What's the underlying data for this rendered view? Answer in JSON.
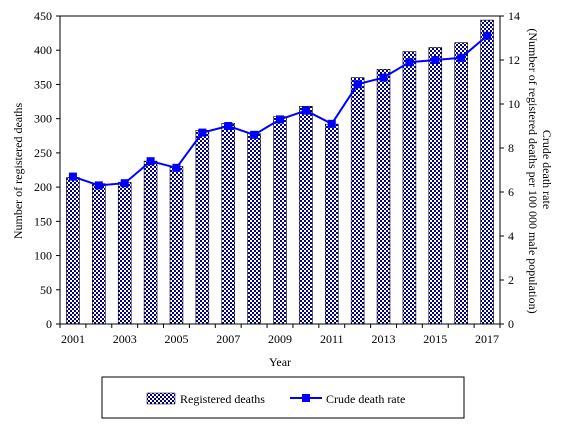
{
  "chart_data": {
    "type": "bar",
    "categories": [
      "2001",
      "2002",
      "2003",
      "2004",
      "2005",
      "2006",
      "2007",
      "2008",
      "2009",
      "2010",
      "2011",
      "2012",
      "2013",
      "2014",
      "2015",
      "2016",
      "2017"
    ],
    "x_tick_labels": [
      "2001",
      "2003",
      "2005",
      "2007",
      "2009",
      "2011",
      "2013",
      "2015",
      "2017"
    ],
    "xlabel": "Year",
    "ylabel": "Number of registered deaths",
    "ylabel_right": [
      "Crude death rate",
      "(Number of registered deaths per 100 000 male population)"
    ],
    "ylim": [
      0,
      450
    ],
    "ylim_right": [
      0,
      14
    ],
    "y_ticks": [
      0,
      50,
      100,
      150,
      200,
      250,
      300,
      350,
      400,
      450
    ],
    "y_ticks_right": [
      0,
      2,
      4,
      6,
      8,
      10,
      12,
      14
    ],
    "grid": false,
    "legend_position": "bottom",
    "series": [
      {
        "name": "Registered deaths",
        "type": "bar",
        "axis": "left",
        "pattern": "checkered",
        "color": "#000080",
        "values": [
          214,
          205,
          207,
          238,
          230,
          283,
          293,
          278,
          303,
          318,
          292,
          360,
          372,
          398,
          404,
          411,
          444
        ]
      },
      {
        "name": "Crude death rate",
        "type": "line",
        "axis": "right",
        "color": "#0000ff",
        "marker": "square",
        "values": [
          6.7,
          6.3,
          6.4,
          7.4,
          7.1,
          8.7,
          9.0,
          8.6,
          9.3,
          9.7,
          9.1,
          10.9,
          11.2,
          11.9,
          12.0,
          12.1,
          13.1
        ]
      }
    ]
  }
}
